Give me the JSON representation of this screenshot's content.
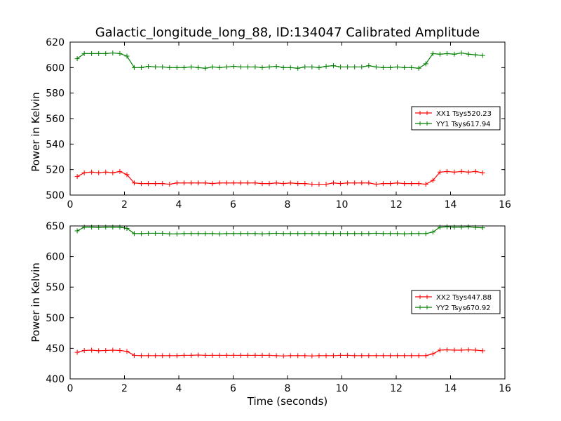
{
  "figure": {
    "title": "Galactic_longitude_long_88, ID:134047 Calibrated Amplitude",
    "background": "#ffffff"
  },
  "colors": {
    "red": "#ff0000",
    "green": "#008000"
  },
  "chart_data": [
    {
      "type": "line",
      "title": "Galactic_longitude_long_88, ID:134047 Calibrated Amplitude",
      "xlabel": "",
      "ylabel": "Power in Kelvin",
      "xlim": [
        0,
        16
      ],
      "ylim": [
        500,
        620
      ],
      "xticks": [
        "0",
        "2",
        "4",
        "6",
        "8",
        "10",
        "12",
        "14",
        "16"
      ],
      "yticks": [
        "500",
        "520",
        "540",
        "560",
        "580",
        "600",
        "620"
      ],
      "legend_position": "right",
      "x": [
        0.26,
        0.52,
        0.79,
        1.05,
        1.31,
        1.57,
        1.83,
        2.09,
        2.36,
        2.62,
        2.88,
        3.14,
        3.4,
        3.66,
        3.93,
        4.19,
        4.45,
        4.71,
        4.97,
        5.24,
        5.5,
        5.76,
        6.02,
        6.28,
        6.54,
        6.81,
        7.07,
        7.33,
        7.59,
        7.85,
        8.11,
        8.38,
        8.64,
        8.9,
        9.16,
        9.42,
        9.69,
        9.95,
        10.21,
        10.47,
        10.73,
        10.99,
        11.26,
        11.52,
        11.78,
        12.04,
        12.3,
        12.56,
        12.83,
        13.09,
        13.35,
        13.61,
        13.87,
        14.14,
        14.4,
        14.66,
        14.92,
        15.18
      ],
      "series": [
        {
          "name": "XX1 Tsys520.23",
          "color": "#ff0000",
          "values": [
            514.5,
            517.5,
            518,
            517.5,
            518,
            517.5,
            518.5,
            516,
            509.5,
            509,
            509,
            509,
            509,
            508.5,
            509.5,
            509.5,
            509.5,
            509.5,
            509.5,
            509,
            509.5,
            509.5,
            509.5,
            509.5,
            509.5,
            509.5,
            509,
            509,
            509.5,
            509,
            509.5,
            509,
            509,
            508.5,
            508.5,
            508.5,
            509.5,
            509,
            509.5,
            509.5,
            509.5,
            509.5,
            508.5,
            509,
            509,
            509.5,
            509,
            509,
            509,
            508.5,
            511.5,
            518,
            518.5,
            518,
            518.5,
            518,
            518.5,
            517.5
          ]
        },
        {
          "name": "YY1 Tsys617.94",
          "color": "#008000",
          "values": [
            607,
            611,
            611,
            611,
            611,
            611.5,
            611,
            609,
            600,
            600,
            601,
            600.5,
            600.5,
            600,
            600,
            600,
            600.5,
            600,
            599.5,
            600.5,
            600,
            600.5,
            601,
            600.5,
            600.5,
            600.5,
            600,
            600.5,
            601,
            600,
            600,
            599.5,
            600.5,
            600.5,
            600,
            601,
            601.5,
            600.5,
            600.5,
            600.5,
            600.5,
            601.5,
            600.5,
            600,
            600,
            600.5,
            600,
            600,
            599.5,
            603,
            611,
            610.5,
            611,
            610.5,
            611.5,
            610.5,
            610,
            609.5
          ]
        }
      ]
    },
    {
      "type": "line",
      "title": "",
      "xlabel": "Time (seconds)",
      "ylabel": "Power in Kelvin",
      "xlim": [
        0,
        16
      ],
      "ylim": [
        400,
        650
      ],
      "xticks": [
        "0",
        "2",
        "4",
        "6",
        "8",
        "10",
        "12",
        "14",
        "16"
      ],
      "yticks": [
        "400",
        "450",
        "500",
        "550",
        "600",
        "650"
      ],
      "legend_position": "right",
      "x": [
        0.26,
        0.52,
        0.79,
        1.05,
        1.31,
        1.57,
        1.83,
        2.09,
        2.36,
        2.62,
        2.88,
        3.14,
        3.4,
        3.66,
        3.93,
        4.19,
        4.45,
        4.71,
        4.97,
        5.24,
        5.5,
        5.76,
        6.02,
        6.28,
        6.54,
        6.81,
        7.07,
        7.33,
        7.59,
        7.85,
        8.11,
        8.38,
        8.64,
        8.9,
        9.16,
        9.42,
        9.69,
        9.95,
        10.21,
        10.47,
        10.73,
        10.99,
        11.26,
        11.52,
        11.78,
        12.04,
        12.3,
        12.56,
        12.83,
        13.09,
        13.35,
        13.61,
        13.87,
        14.14,
        14.4,
        14.66,
        14.92,
        15.18
      ],
      "series": [
        {
          "name": "XX2 Tsys447.88",
          "color": "#ff0000",
          "values": [
            443.5,
            446.5,
            447,
            446,
            446.5,
            447,
            446.5,
            445,
            438.5,
            438,
            438,
            438,
            438,
            438,
            438,
            438.5,
            438.5,
            439,
            438.5,
            438.5,
            438.5,
            438.5,
            438.5,
            438.5,
            438.5,
            438.5,
            438.5,
            438.5,
            438,
            437.5,
            438,
            438,
            438,
            437.5,
            438,
            438,
            438,
            438.5,
            438.5,
            438,
            438,
            438,
            438,
            438,
            438,
            438,
            438,
            438,
            438,
            438,
            441,
            447,
            447.5,
            447,
            447,
            447.5,
            447,
            446
          ]
        },
        {
          "name": "YY2 Tsys670.92",
          "color": "#008000",
          "values": [
            642,
            648,
            648,
            647.5,
            648,
            648,
            648,
            646,
            637.5,
            637.5,
            638,
            638,
            638,
            637,
            637,
            637.5,
            637.5,
            637.5,
            637.5,
            637.5,
            637,
            637.5,
            637.5,
            637.5,
            637.5,
            637.5,
            637,
            637.5,
            638,
            637.5,
            637.5,
            637.5,
            637.5,
            637.5,
            637.5,
            637.5,
            637.5,
            637.5,
            637.5,
            637.5,
            637.5,
            637.5,
            638,
            637.5,
            637.5,
            637.5,
            637,
            637.5,
            637.5,
            637.5,
            640,
            648,
            648.5,
            648,
            648,
            648.5,
            647.5,
            647
          ]
        }
      ]
    }
  ]
}
